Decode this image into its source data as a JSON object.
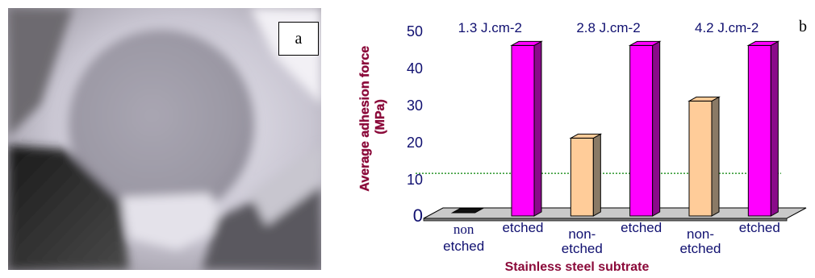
{
  "figure": {
    "panel_a_label": "a",
    "panel_b_label": "b"
  },
  "colors": {
    "etched": "#ff00ff",
    "etched_side": "#8a0a8a",
    "non_etched": "#ffcc99",
    "non_etched_side": "#8a7a66",
    "threshold_line": "#008000",
    "axis_title": "#8b0a3a",
    "text_blue": "#101070"
  },
  "chart_data": {
    "type": "bar",
    "style": "3d",
    "categories": [
      [
        "non",
        "etched"
      ],
      [
        "etched"
      ],
      [
        "non-",
        "etched"
      ],
      [
        "etched"
      ],
      [
        "non-",
        "etched"
      ],
      [
        "etched"
      ]
    ],
    "values": [
      0,
      46,
      21,
      46,
      31,
      46
    ],
    "bar_kind": [
      "non_etched",
      "etched",
      "non_etched",
      "etched",
      "non_etched",
      "etched"
    ],
    "group_labels": [
      "1.3 J.cm-2",
      "2.8 J.cm-2",
      "4.2 J.cm-2"
    ],
    "ylabel": [
      "Average adhesion force",
      "(MPa)"
    ],
    "xlabel": "Stainless steel subtrate",
    "ylim": [
      0,
      50
    ],
    "yticks": [
      0,
      10,
      20,
      30,
      40,
      50
    ],
    "reference_line": 11.5,
    "grid": false
  }
}
